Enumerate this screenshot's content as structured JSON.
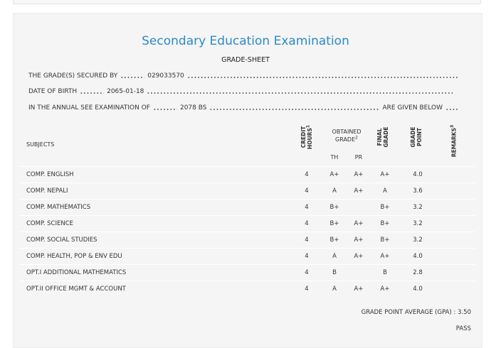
{
  "header": {
    "title": "Secondary Education Examination",
    "subtitle": "GRADE-SHEET"
  },
  "details": [
    {
      "label": "THE GRADE(S) SECURED BY",
      "value": "029033570"
    },
    {
      "label": "DATE OF BIRTH",
      "value": "2065-01-18"
    },
    {
      "label": "IN THE ANNUAL SEE EXAMINATION OF",
      "value": "2078 BS",
      "suffix": "ARE GIVEN BELOW"
    }
  ],
  "table": {
    "headers": {
      "subjects": "SUBJECTS",
      "credit_hours": "CREDIT HOURS",
      "credit_note": "1",
      "obtained_grade": "OBTAINED GRADE",
      "obtained_note": "2",
      "th": "TH",
      "pr": "PR",
      "final_grade": "FINAL GRADE",
      "grade_point": "GRADE POINT",
      "remarks": "REMARKS",
      "remarks_note": "3"
    },
    "rows": [
      [
        "COMP. ENGLISH",
        4,
        "A+",
        "A+",
        "A+",
        "4.0"
      ],
      [
        "COMP. NEPALI",
        4,
        "A",
        "A+",
        "A",
        "3.6"
      ],
      [
        "COMP. MATHEMATICS",
        4,
        "B+",
        null,
        "B+",
        "3.2"
      ],
      [
        "COMP. SCIENCE",
        4,
        "B+",
        "A+",
        "B+",
        "3.2"
      ],
      [
        "COMP. SOCIAL STUDIES",
        4,
        "B+",
        "A+",
        "B+",
        "3.2"
      ],
      [
        "COMP. HEALTH, POP & ENV EDU",
        4,
        "A",
        "A+",
        "A+",
        "4.0"
      ],
      [
        "OPT.I ADDITIONAL MATHEMATICS",
        4,
        "B",
        null,
        "B",
        "2.8"
      ],
      [
        "OPT.II OFFICE MGMT & ACCOUNT",
        4,
        "A",
        "A+",
        "A+",
        "4.0"
      ]
    ]
  },
  "footer": {
    "gpa_label": "GRADE POINT AVERAGE (GPA) :",
    "gpa": "3.50",
    "result": "PASS"
  }
}
